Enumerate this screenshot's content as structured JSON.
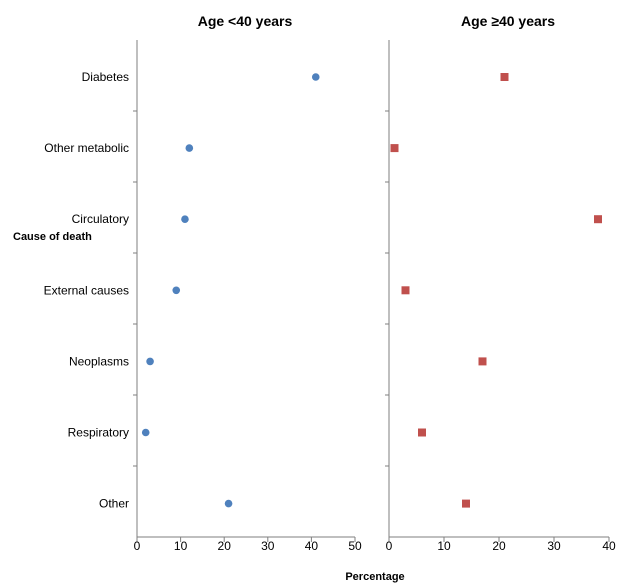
{
  "chart_data": {
    "type": "scatter",
    "categories": [
      "Diabetes",
      "Other metabolic",
      "Circulatory",
      "External causes",
      "Neoplasms",
      "Respiratory",
      "Other"
    ],
    "ylabel": "Cause of death",
    "xlabel": "Percentage",
    "panels": [
      {
        "title": "Age <40 years",
        "marker": "circle",
        "color": "#4f81bd",
        "xlim": [
          0,
          50
        ],
        "xticks": [
          0,
          10,
          20,
          30,
          40,
          50
        ],
        "values": [
          41,
          12,
          11,
          9,
          3,
          2,
          21
        ]
      },
      {
        "title": "Age ≥40 years",
        "marker": "square",
        "color": "#c0504d",
        "xlim": [
          0,
          40
        ],
        "xticks": [
          0,
          10,
          20,
          30,
          40
        ],
        "values": [
          21,
          1,
          38,
          3,
          17,
          6,
          14
        ]
      }
    ]
  }
}
